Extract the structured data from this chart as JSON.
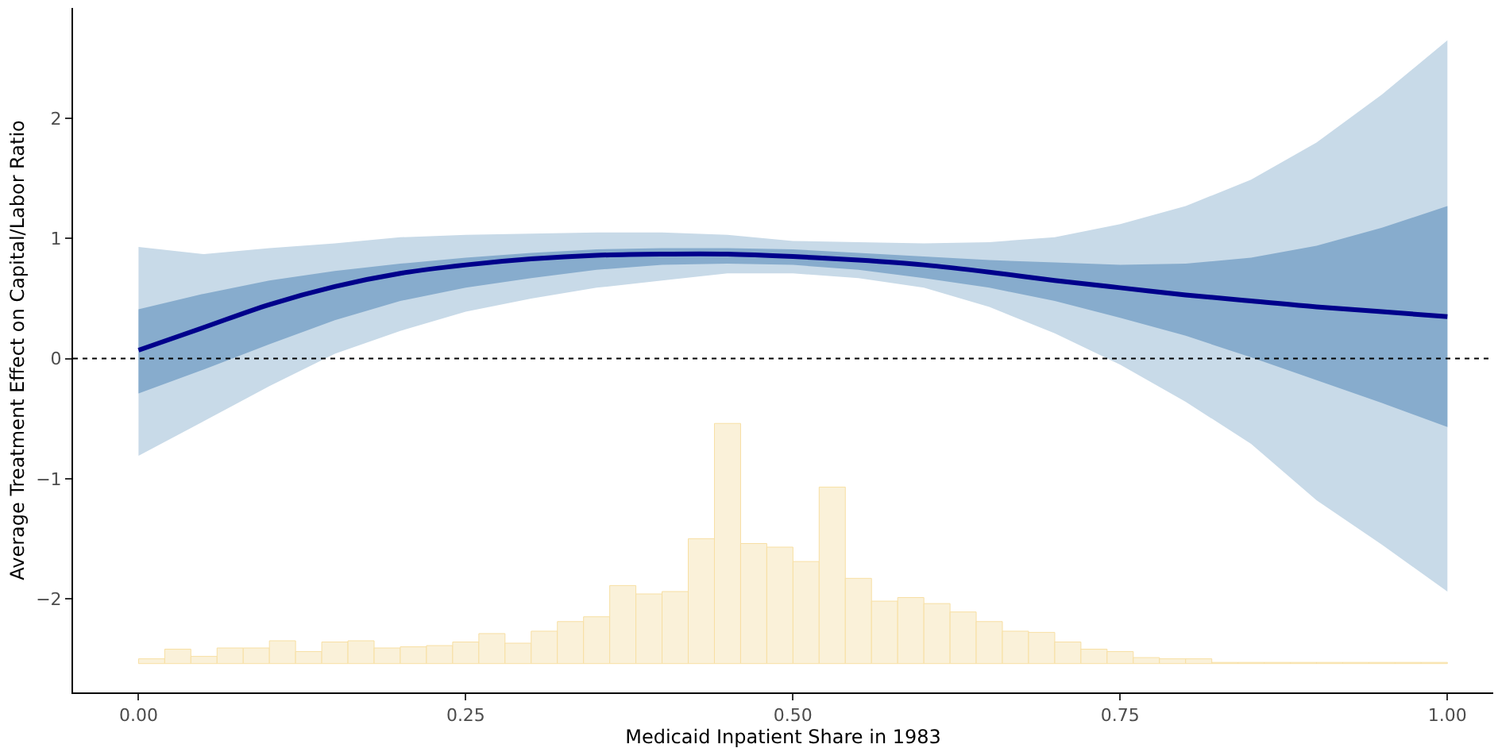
{
  "chart_data": {
    "type": "line",
    "xlabel": "Medicaid Inpatient Share in 1983",
    "ylabel": "Average Treatment Effect on Capital/Labor Ratio",
    "xlim": [
      -0.05,
      1.035
    ],
    "ylim": [
      -2.78,
      2.92
    ],
    "xticks": [
      {
        "value": 0,
        "label": "0.00"
      },
      {
        "value": 0.25,
        "label": "0.25"
      },
      {
        "value": 0.5,
        "label": "0.50"
      },
      {
        "value": 0.75,
        "label": "0.75"
      },
      {
        "value": 1,
        "label": "1.00"
      }
    ],
    "yticks": [
      {
        "value": -2,
        "label": "−2"
      },
      {
        "value": -1,
        "label": "−1"
      },
      0,
      1,
      2
    ],
    "ref_lines": [
      {
        "axis": "y",
        "value": 0,
        "label": null,
        "color": "#000000",
        "line_style": "dotted"
      }
    ],
    "series": [
      {
        "type": "bar",
        "color": "#faf1d9",
        "x": [
          0.01,
          0.03,
          0.05,
          0.07,
          0.09,
          0.11,
          0.13,
          0.15,
          0.17,
          0.19,
          0.21,
          0.23,
          0.25,
          0.27,
          0.29,
          0.31,
          0.33,
          0.35,
          0.37,
          0.39,
          0.41,
          0.43,
          0.45,
          0.47,
          0.49,
          0.51,
          0.53,
          0.55,
          0.57,
          0.59,
          0.61,
          0.63,
          0.65,
          0.67,
          0.69,
          0.71,
          0.73,
          0.75,
          0.77,
          0.79,
          0.81,
          0.83,
          0.85,
          0.87,
          0.89,
          0.91,
          0.93,
          0.95,
          0.97,
          0.99
        ],
        "values": [
          0.04,
          0.12,
          0.06,
          0.13,
          0.13,
          0.19,
          0.1,
          0.18,
          0.19,
          0.13,
          0.14,
          0.15,
          0.18,
          0.25,
          0.17,
          0.27,
          0.35,
          0.39,
          0.65,
          0.58,
          0.6,
          1.04,
          2.0,
          1.0,
          0.97,
          0.85,
          1.47,
          0.71,
          0.52,
          0.55,
          0.5,
          0.43,
          0.35,
          0.27,
          0.26,
          0.18,
          0.12,
          0.1,
          0.05,
          0.04,
          0.04,
          0.01,
          0.01,
          0.01,
          0.01,
          0.01,
          0.01,
          0.01,
          0.01,
          0.01
        ],
        "base": [
          -2.54,
          -2.54,
          -2.54,
          -2.54,
          -2.54,
          -2.54,
          -2.54,
          -2.54,
          -2.54,
          -2.54,
          -2.54,
          -2.54,
          -2.54,
          -2.54,
          -2.54,
          -2.54,
          -2.54,
          -2.54,
          -2.54,
          -2.54,
          -2.54,
          -2.54,
          -2.54,
          -2.54,
          -2.54,
          -2.54,
          -2.54,
          -2.54,
          -2.54,
          -2.54,
          -2.54,
          -2.54,
          -2.54,
          -2.54,
          -2.54,
          -2.54,
          -2.54,
          -2.54,
          -2.54,
          -2.54,
          -2.54,
          -2.54,
          -2.54,
          -2.54,
          -2.54,
          -2.54,
          -2.54,
          -2.54,
          -2.54,
          -2.54
        ]
      },
      {
        "color": "#c8dae8",
        "x": [
          0,
          0.05,
          0.1,
          0.15,
          0.2,
          0.25,
          0.3,
          0.35,
          0.4,
          0.45,
          0.5,
          0.55,
          0.6,
          0.65,
          0.7,
          0.75,
          0.8,
          0.85,
          0.9,
          0.95,
          1.0
        ],
        "values": [
          null,
          null,
          null,
          null,
          null,
          null,
          null,
          null,
          null,
          null,
          null,
          null,
          null,
          null,
          null,
          null,
          null,
          null,
          null,
          null,
          null
        ],
        "upper": [
          0.93,
          0.87,
          0.92,
          0.96,
          1.01,
          1.03,
          1.04,
          1.05,
          1.05,
          1.03,
          0.98,
          0.97,
          0.96,
          0.97,
          1.01,
          1.12,
          1.27,
          1.49,
          1.8,
          2.2,
          2.65
        ],
        "lower": [
          -0.81,
          -0.52,
          -0.23,
          0.04,
          0.23,
          0.39,
          0.5,
          0.59,
          0.65,
          0.71,
          0.71,
          0.67,
          0.59,
          0.43,
          0.21,
          -0.05,
          -0.36,
          -0.71,
          -1.18,
          -1.55,
          -1.94
        ]
      },
      {
        "color": "#87accd",
        "x": [
          0,
          0.05,
          0.1,
          0.15,
          0.2,
          0.25,
          0.3,
          0.35,
          0.4,
          0.45,
          0.5,
          0.55,
          0.6,
          0.65,
          0.7,
          0.75,
          0.8,
          0.85,
          0.9,
          0.95,
          1.0
        ],
        "values": [
          null,
          null,
          null,
          null,
          null,
          null,
          null,
          null,
          null,
          null,
          null,
          null,
          null,
          null,
          null,
          null,
          null,
          null,
          null,
          null,
          null
        ],
        "upper": [
          0.41,
          0.54,
          0.65,
          0.73,
          0.79,
          0.84,
          0.88,
          0.91,
          0.92,
          0.92,
          0.91,
          0.88,
          0.85,
          0.82,
          0.8,
          0.78,
          0.79,
          0.84,
          0.94,
          1.09,
          1.27
        ],
        "lower": [
          -0.29,
          -0.09,
          0.12,
          0.32,
          0.48,
          0.59,
          0.67,
          0.74,
          0.78,
          0.79,
          0.78,
          0.74,
          0.67,
          0.59,
          0.48,
          0.34,
          0.19,
          0.01,
          -0.18,
          -0.37,
          -0.57
        ]
      },
      {
        "color": "#00008b",
        "x": [
          0,
          0.05,
          0.1,
          0.15,
          0.2,
          0.25,
          0.3,
          0.35,
          0.4,
          0.45,
          0.5,
          0.55,
          0.6,
          0.65,
          0.7,
          0.75,
          0.8,
          0.85,
          0.9,
          0.95,
          1.0
        ],
        "values": [
          0.07,
          0.26,
          0.45,
          0.6,
          0.71,
          0.78,
          0.83,
          0.86,
          0.87,
          0.87,
          0.85,
          0.82,
          0.78,
          0.72,
          0.65,
          0.59,
          0.53,
          0.48,
          0.43,
          0.39,
          0.35
        ]
      }
    ]
  }
}
